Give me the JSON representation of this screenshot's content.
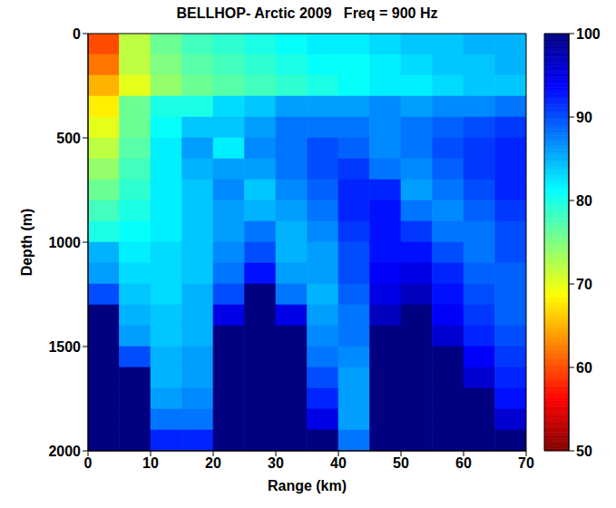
{
  "chart_data": {
    "type": "heatmap",
    "title": "BELLHOP- Arctic 2009   Freq = 900 Hz",
    "xlabel": "Range (km)",
    "ylabel": "Depth (m)",
    "xlim": [
      0,
      70
    ],
    "xticks": [
      0,
      10,
      20,
      30,
      40,
      50,
      60,
      70
    ],
    "ylim": [
      2000,
      0
    ],
    "yticks": [
      0,
      500,
      1000,
      1500,
      2000
    ],
    "x_edges": [
      0,
      5,
      10,
      15,
      20,
      25,
      30,
      35,
      40,
      45,
      50,
      55,
      60,
      65,
      70
    ],
    "y_edges": [
      0,
      100,
      200,
      300,
      400,
      500,
      600,
      700,
      800,
      900,
      1000,
      1100,
      1200,
      1300,
      1400,
      1500,
      1600,
      1700,
      1800,
      1900,
      2000
    ],
    "cells": [
      [
        60,
        72,
        76,
        78,
        79,
        80,
        81,
        82,
        82,
        83,
        84,
        84,
        85,
        85
      ],
      [
        62,
        72,
        75,
        77,
        78,
        79,
        80,
        81,
        81,
        82,
        83,
        84,
        84,
        85
      ],
      [
        65,
        70,
        74,
        76,
        77,
        78,
        79,
        80,
        81,
        82,
        82,
        83,
        84,
        84
      ],
      [
        68,
        76,
        80,
        80,
        83,
        84,
        86,
        86,
        86,
        87,
        86,
        87,
        87,
        88
      ],
      [
        70,
        76,
        81,
        84,
        84,
        86,
        88,
        88,
        88,
        87,
        88,
        89,
        90,
        91
      ],
      [
        72,
        77,
        82,
        86,
        82,
        87,
        88,
        90,
        89,
        87,
        88,
        90,
        91,
        92
      ],
      [
        74,
        78,
        82,
        85,
        86,
        86,
        88,
        90,
        91,
        88,
        87,
        89,
        91,
        92
      ],
      [
        76,
        79,
        82,
        84,
        87,
        84,
        87,
        89,
        92,
        92,
        86,
        88,
        90,
        92
      ],
      [
        78,
        80,
        82,
        84,
        86,
        85,
        86,
        88,
        92,
        93,
        88,
        87,
        89,
        91
      ],
      [
        80,
        81,
        82,
        84,
        86,
        88,
        85,
        87,
        91,
        93,
        91,
        88,
        88,
        90
      ],
      [
        85,
        82,
        83,
        84,
        87,
        90,
        85,
        86,
        90,
        93,
        93,
        90,
        88,
        90
      ],
      [
        86,
        83,
        83,
        84,
        88,
        93,
        86,
        86,
        90,
        94,
        95,
        92,
        89,
        89
      ],
      [
        90,
        84,
        83,
        85,
        90,
        100,
        88,
        85,
        89,
        95,
        97,
        93,
        90,
        89
      ],
      [
        100,
        85,
        84,
        85,
        95,
        100,
        95,
        86,
        88,
        97,
        100,
        94,
        91,
        89
      ],
      [
        100,
        86,
        84,
        85,
        100,
        100,
        100,
        87,
        88,
        100,
        100,
        96,
        92,
        90
      ],
      [
        100,
        90,
        85,
        86,
        100,
        100,
        100,
        88,
        87,
        100,
        100,
        100,
        94,
        91
      ],
      [
        100,
        100,
        85,
        86,
        100,
        100,
        100,
        90,
        86,
        100,
        100,
        100,
        96,
        92
      ],
      [
        100,
        100,
        86,
        87,
        100,
        100,
        100,
        92,
        86,
        100,
        100,
        100,
        100,
        93
      ],
      [
        100,
        100,
        88,
        88,
        100,
        100,
        100,
        95,
        86,
        100,
        100,
        100,
        100,
        96
      ],
      [
        100,
        100,
        92,
        92,
        100,
        100,
        100,
        100,
        88,
        100,
        100,
        100,
        100,
        100
      ]
    ],
    "colorbar": {
      "range": [
        50,
        100
      ],
      "ticks": [
        50,
        60,
        70,
        80,
        90,
        100
      ]
    }
  }
}
